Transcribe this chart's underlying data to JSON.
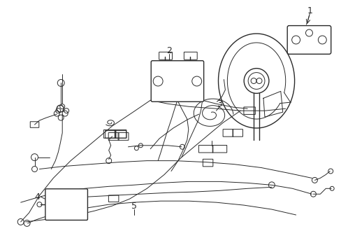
{
  "background_color": "#ffffff",
  "line_color": "#2a2a2a",
  "lw": 1.0,
  "tlw": 0.7,
  "fig_width": 4.89,
  "fig_height": 3.6,
  "dpi": 100
}
